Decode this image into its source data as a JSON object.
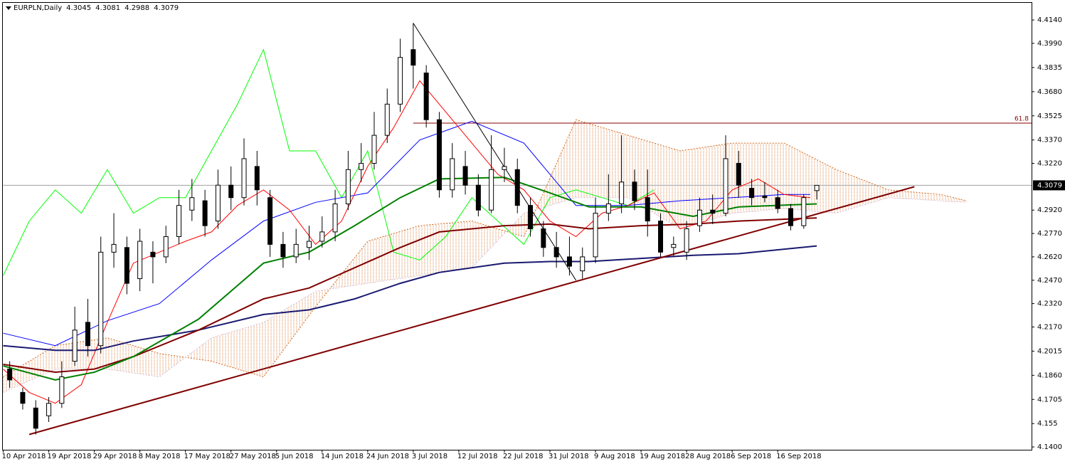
{
  "chart_data": {
    "type": "candlestick",
    "symbol": "EURPLN,Daily",
    "ohlc": [
      4.3045,
      4.3081,
      4.2988,
      4.3079
    ],
    "xlim": [
      0,
      158
    ],
    "ylim": [
      4.1382,
      4.425
    ],
    "xticks": [
      {
        "value": 0,
        "label": "10 Apr 2018"
      },
      {
        "value": 7,
        "label": "19 Apr 2018"
      },
      {
        "value": 14,
        "label": "29 Apr 2018"
      },
      {
        "value": 21,
        "label": "8 May 2018"
      },
      {
        "value": 28,
        "label": "17 May 2018"
      },
      {
        "value": 35,
        "label": "27 May 2018"
      },
      {
        "value": 42,
        "label": "5 Jun 2018"
      },
      {
        "value": 49,
        "label": "14 Jun 2018"
      },
      {
        "value": 56,
        "label": "24 Jun 2018"
      },
      {
        "value": 63,
        "label": "3 Jul 2018"
      },
      {
        "value": 70,
        "label": "12 Jul 2018"
      },
      {
        "value": 77,
        "label": "22 Jul 2018"
      },
      {
        "value": 84,
        "label": "31 Jul 2018"
      },
      {
        "value": 91,
        "label": "9 Aug 2018"
      },
      {
        "value": 98,
        "label": "19 Aug 2018"
      },
      {
        "value": 105,
        "label": "28 Aug 2018"
      },
      {
        "value": 112,
        "label": "6 Sep 2018"
      },
      {
        "value": 119,
        "label": "16 Sep 2018"
      }
    ],
    "yticks": [
      {
        "value": 4.414,
        "label": "4.4140"
      },
      {
        "value": 4.399,
        "label": "4.3990"
      },
      4.3835,
      {
        "value": 4.368,
        "label": "4.3680"
      },
      4.3525,
      {
        "value": 4.337,
        "label": "4.3370"
      },
      {
        "value": 4.322,
        "label": "4.3220"
      },
      {
        "value": 4.292,
        "label": "4.2920"
      },
      {
        "value": 4.277,
        "label": "4.2770"
      },
      {
        "value": 4.262,
        "label": "4.2620"
      },
      {
        "value": 4.247,
        "label": "4.2470"
      },
      {
        "value": 4.232,
        "label": "4.2320"
      },
      {
        "value": 4.217,
        "label": "4.2170"
      },
      4.2015,
      {
        "value": 4.186,
        "label": "4.1860"
      },
      4.1705,
      4.155,
      {
        "value": 4.14,
        "label": "4.1400"
      }
    ],
    "x": [
      1,
      3,
      5,
      7,
      9,
      11,
      13,
      15,
      17,
      19,
      21,
      23,
      25,
      27,
      29,
      31,
      33,
      35,
      37,
      39,
      41,
      43,
      45,
      47,
      49,
      51,
      53,
      55,
      57,
      59,
      61,
      63,
      65,
      67,
      69,
      71,
      73,
      75,
      77,
      79,
      81,
      83,
      85,
      87,
      89,
      91,
      93,
      95,
      97,
      99,
      101,
      103,
      105,
      107,
      109,
      111,
      113,
      115,
      117,
      119,
      121,
      123,
      125
    ],
    "open": [
      4.19,
      4.175,
      4.165,
      4.16,
      4.168,
      4.195,
      4.22,
      4.205,
      4.265,
      4.268,
      4.248,
      4.265,
      4.262,
      4.275,
      4.292,
      4.298,
      4.285,
      4.308,
      4.3,
      4.32,
      4.3,
      4.27,
      4.262,
      4.268,
      4.272,
      4.278,
      4.296,
      4.318,
      4.322,
      4.34,
      4.36,
      4.395,
      4.38,
      4.35,
      4.305,
      4.32,
      4.308,
      4.292,
      4.318,
      4.318,
      4.295,
      4.28,
      4.268,
      4.262,
      4.253,
      4.262,
      4.29,
      4.296,
      4.31,
      4.3,
      4.285,
      4.268,
      4.265,
      4.282,
      4.292,
      4.29,
      4.322,
      4.306,
      4.301,
      4.3,
      4.293,
      4.282,
      4.3045
    ],
    "high": [
      4.195,
      4.178,
      4.17,
      4.172,
      4.195,
      4.23,
      4.235,
      4.275,
      4.29,
      4.275,
      4.28,
      4.272,
      4.282,
      4.305,
      4.312,
      4.305,
      4.318,
      4.32,
      4.338,
      4.33,
      4.305,
      4.278,
      4.28,
      4.282,
      4.288,
      4.305,
      4.33,
      4.335,
      4.355,
      4.37,
      4.402,
      4.412,
      4.385,
      4.355,
      4.335,
      4.33,
      4.315,
      4.34,
      4.332,
      4.325,
      4.3,
      4.285,
      4.278,
      4.275,
      4.268,
      4.3,
      4.315,
      4.34,
      4.318,
      4.318,
      4.29,
      4.275,
      4.285,
      4.3,
      4.302,
      4.34,
      4.33,
      4.312,
      4.31,
      4.305,
      4.296,
      4.302,
      4.3081
    ],
    "low": [
      4.178,
      4.164,
      4.148,
      4.156,
      4.165,
      4.192,
      4.198,
      4.2,
      4.255,
      4.238,
      4.24,
      4.245,
      4.258,
      4.27,
      4.285,
      4.275,
      4.28,
      4.292,
      4.295,
      4.295,
      4.262,
      4.255,
      4.258,
      4.26,
      4.268,
      4.272,
      4.292,
      4.31,
      4.318,
      4.335,
      4.355,
      4.37,
      4.345,
      4.3,
      4.3,
      4.302,
      4.288,
      4.29,
      4.31,
      4.29,
      4.275,
      4.262,
      4.255,
      4.25,
      4.248,
      4.258,
      4.285,
      4.29,
      4.292,
      4.275,
      4.262,
      4.262,
      4.26,
      4.278,
      4.283,
      4.288,
      4.3,
      4.295,
      4.297,
      4.29,
      4.279,
      4.28,
      4.2988
    ],
    "close": [
      4.183,
      4.168,
      4.152,
      4.168,
      4.185,
      4.215,
      4.205,
      4.265,
      4.27,
      4.245,
      4.272,
      4.262,
      4.275,
      4.295,
      4.3,
      4.282,
      4.308,
      4.3,
      4.325,
      4.305,
      4.27,
      4.262,
      4.27,
      4.272,
      4.278,
      4.296,
      4.318,
      4.322,
      4.34,
      4.36,
      4.39,
      4.385,
      4.35,
      4.305,
      4.325,
      4.308,
      4.292,
      4.318,
      4.32,
      4.295,
      4.28,
      4.268,
      4.262,
      4.256,
      4.262,
      4.29,
      4.296,
      4.31,
      4.298,
      4.285,
      4.265,
      4.27,
      4.28,
      4.292,
      4.29,
      4.325,
      4.308,
      4.3,
      4.3,
      4.293,
      4.282,
      4.3,
      4.3079
    ],
    "cloud": {
      "color": "#d2691e",
      "color_b": "#d8bfd8",
      "x": [
        0,
        8,
        16,
        24,
        32,
        40,
        48,
        56,
        64,
        72,
        80,
        88,
        96,
        104,
        112,
        120,
        128,
        136,
        144,
        148
      ],
      "span_a": [
        4.185,
        4.205,
        4.21,
        4.2,
        4.195,
        4.185,
        4.23,
        4.272,
        4.282,
        4.285,
        4.275,
        4.35,
        4.34,
        4.33,
        4.335,
        4.335,
        4.318,
        4.305,
        4.302,
        4.298
      ],
      "span_b": [
        4.175,
        4.19,
        4.19,
        4.185,
        4.21,
        4.22,
        4.24,
        4.245,
        4.25,
        4.255,
        4.29,
        4.3,
        4.3,
        4.28,
        4.29,
        4.293,
        4.29,
        4.3,
        4.298,
        4.297
      ]
    },
    "overlays": [
      {
        "color": "#00ff00",
        "style": "thin",
        "x": [
          0,
          4,
          8,
          12,
          16,
          20,
          24,
          28,
          32,
          36,
          40,
          44,
          48,
          52,
          56,
          60,
          64,
          68,
          72,
          76,
          80,
          84,
          88,
          92,
          96,
          100
        ],
        "values": [
          4.25,
          4.285,
          4.305,
          4.29,
          4.318,
          4.29,
          4.3,
          4.3,
          4.33,
          4.36,
          4.395,
          4.33,
          4.33,
          4.3,
          4.33,
          4.265,
          4.26,
          4.275,
          4.3,
          4.285,
          4.27,
          4.3,
          4.305,
          4.3,
          4.295,
          4.305
        ]
      },
      {
        "color": "#0000ff",
        "style": "thin",
        "x": [
          0,
          8,
          16,
          24,
          32,
          40,
          48,
          56,
          64,
          72,
          80,
          88,
          96,
          104,
          112,
          120,
          124
        ],
        "values": [
          4.213,
          4.205,
          4.221,
          4.232,
          4.26,
          4.285,
          4.297,
          4.303,
          4.337,
          4.349,
          4.335,
          4.295,
          4.295,
          4.298,
          4.3,
          4.302,
          4.302
        ]
      },
      {
        "color": "#ff0000",
        "style": "thin",
        "x": [
          0,
          4,
          8,
          12,
          16,
          20,
          24,
          28,
          32,
          36,
          40,
          44,
          48,
          52,
          56,
          60,
          64,
          68,
          72,
          76,
          80,
          84,
          88,
          92,
          96,
          100,
          104,
          108,
          112,
          116,
          120,
          124
        ],
        "values": [
          4.19,
          4.175,
          4.168,
          4.18,
          4.22,
          4.258,
          4.265,
          4.272,
          4.278,
          4.295,
          4.305,
          4.292,
          4.27,
          4.285,
          4.32,
          4.345,
          4.375,
          4.355,
          4.335,
          4.315,
          4.305,
          4.285,
          4.275,
          4.29,
          4.295,
          4.303,
          4.28,
          4.285,
          4.305,
          4.312,
          4.302,
          4.3
        ]
      },
      {
        "color": "#191970",
        "style": "thick",
        "x": [
          0,
          8,
          14,
          20,
          30,
          40,
          47,
          54,
          61,
          67,
          77,
          84,
          90,
          98,
          106,
          113,
          125
        ],
        "values": [
          4.205,
          4.202,
          4.202,
          4.208,
          4.215,
          4.225,
          4.228,
          4.235,
          4.245,
          4.252,
          4.258,
          4.259,
          4.259,
          4.261,
          4.263,
          4.264,
          4.269
        ]
      },
      {
        "color": "#800000",
        "style": "thick",
        "x": [
          0,
          8,
          14,
          20,
          30,
          40,
          47,
          54,
          61,
          67,
          77,
          84,
          90,
          98,
          106,
          113,
          125
        ],
        "values": [
          4.193,
          4.188,
          4.19,
          4.198,
          4.215,
          4.235,
          4.242,
          4.255,
          4.268,
          4.278,
          4.282,
          4.283,
          4.28,
          4.282,
          4.283,
          4.285,
          4.287
        ]
      },
      {
        "color": "#008000",
        "style": "thick",
        "x": [
          0,
          8,
          14,
          20,
          30,
          40,
          47,
          54,
          61,
          67,
          77,
          84,
          90,
          98,
          106,
          113,
          125
        ],
        "values": [
          4.192,
          4.183,
          4.188,
          4.198,
          4.222,
          4.258,
          4.265,
          4.282,
          4.3,
          4.312,
          4.313,
          4.303,
          4.294,
          4.294,
          4.288,
          4.294,
          4.296
        ]
      }
    ],
    "trendlines": [
      {
        "color": "#800000",
        "style": "thick",
        "x": [
          4,
          140
        ],
        "values": [
          4.148,
          4.307
        ]
      },
      {
        "color": "#000000",
        "style": "thin",
        "x": [
          63,
          88
        ],
        "values": [
          4.412,
          4.247
        ]
      }
    ],
    "level": {
      "value": 4.3478,
      "label": "61.8",
      "x": 63,
      "color": "#8b0000"
    },
    "last_price": 4.3079
  }
}
